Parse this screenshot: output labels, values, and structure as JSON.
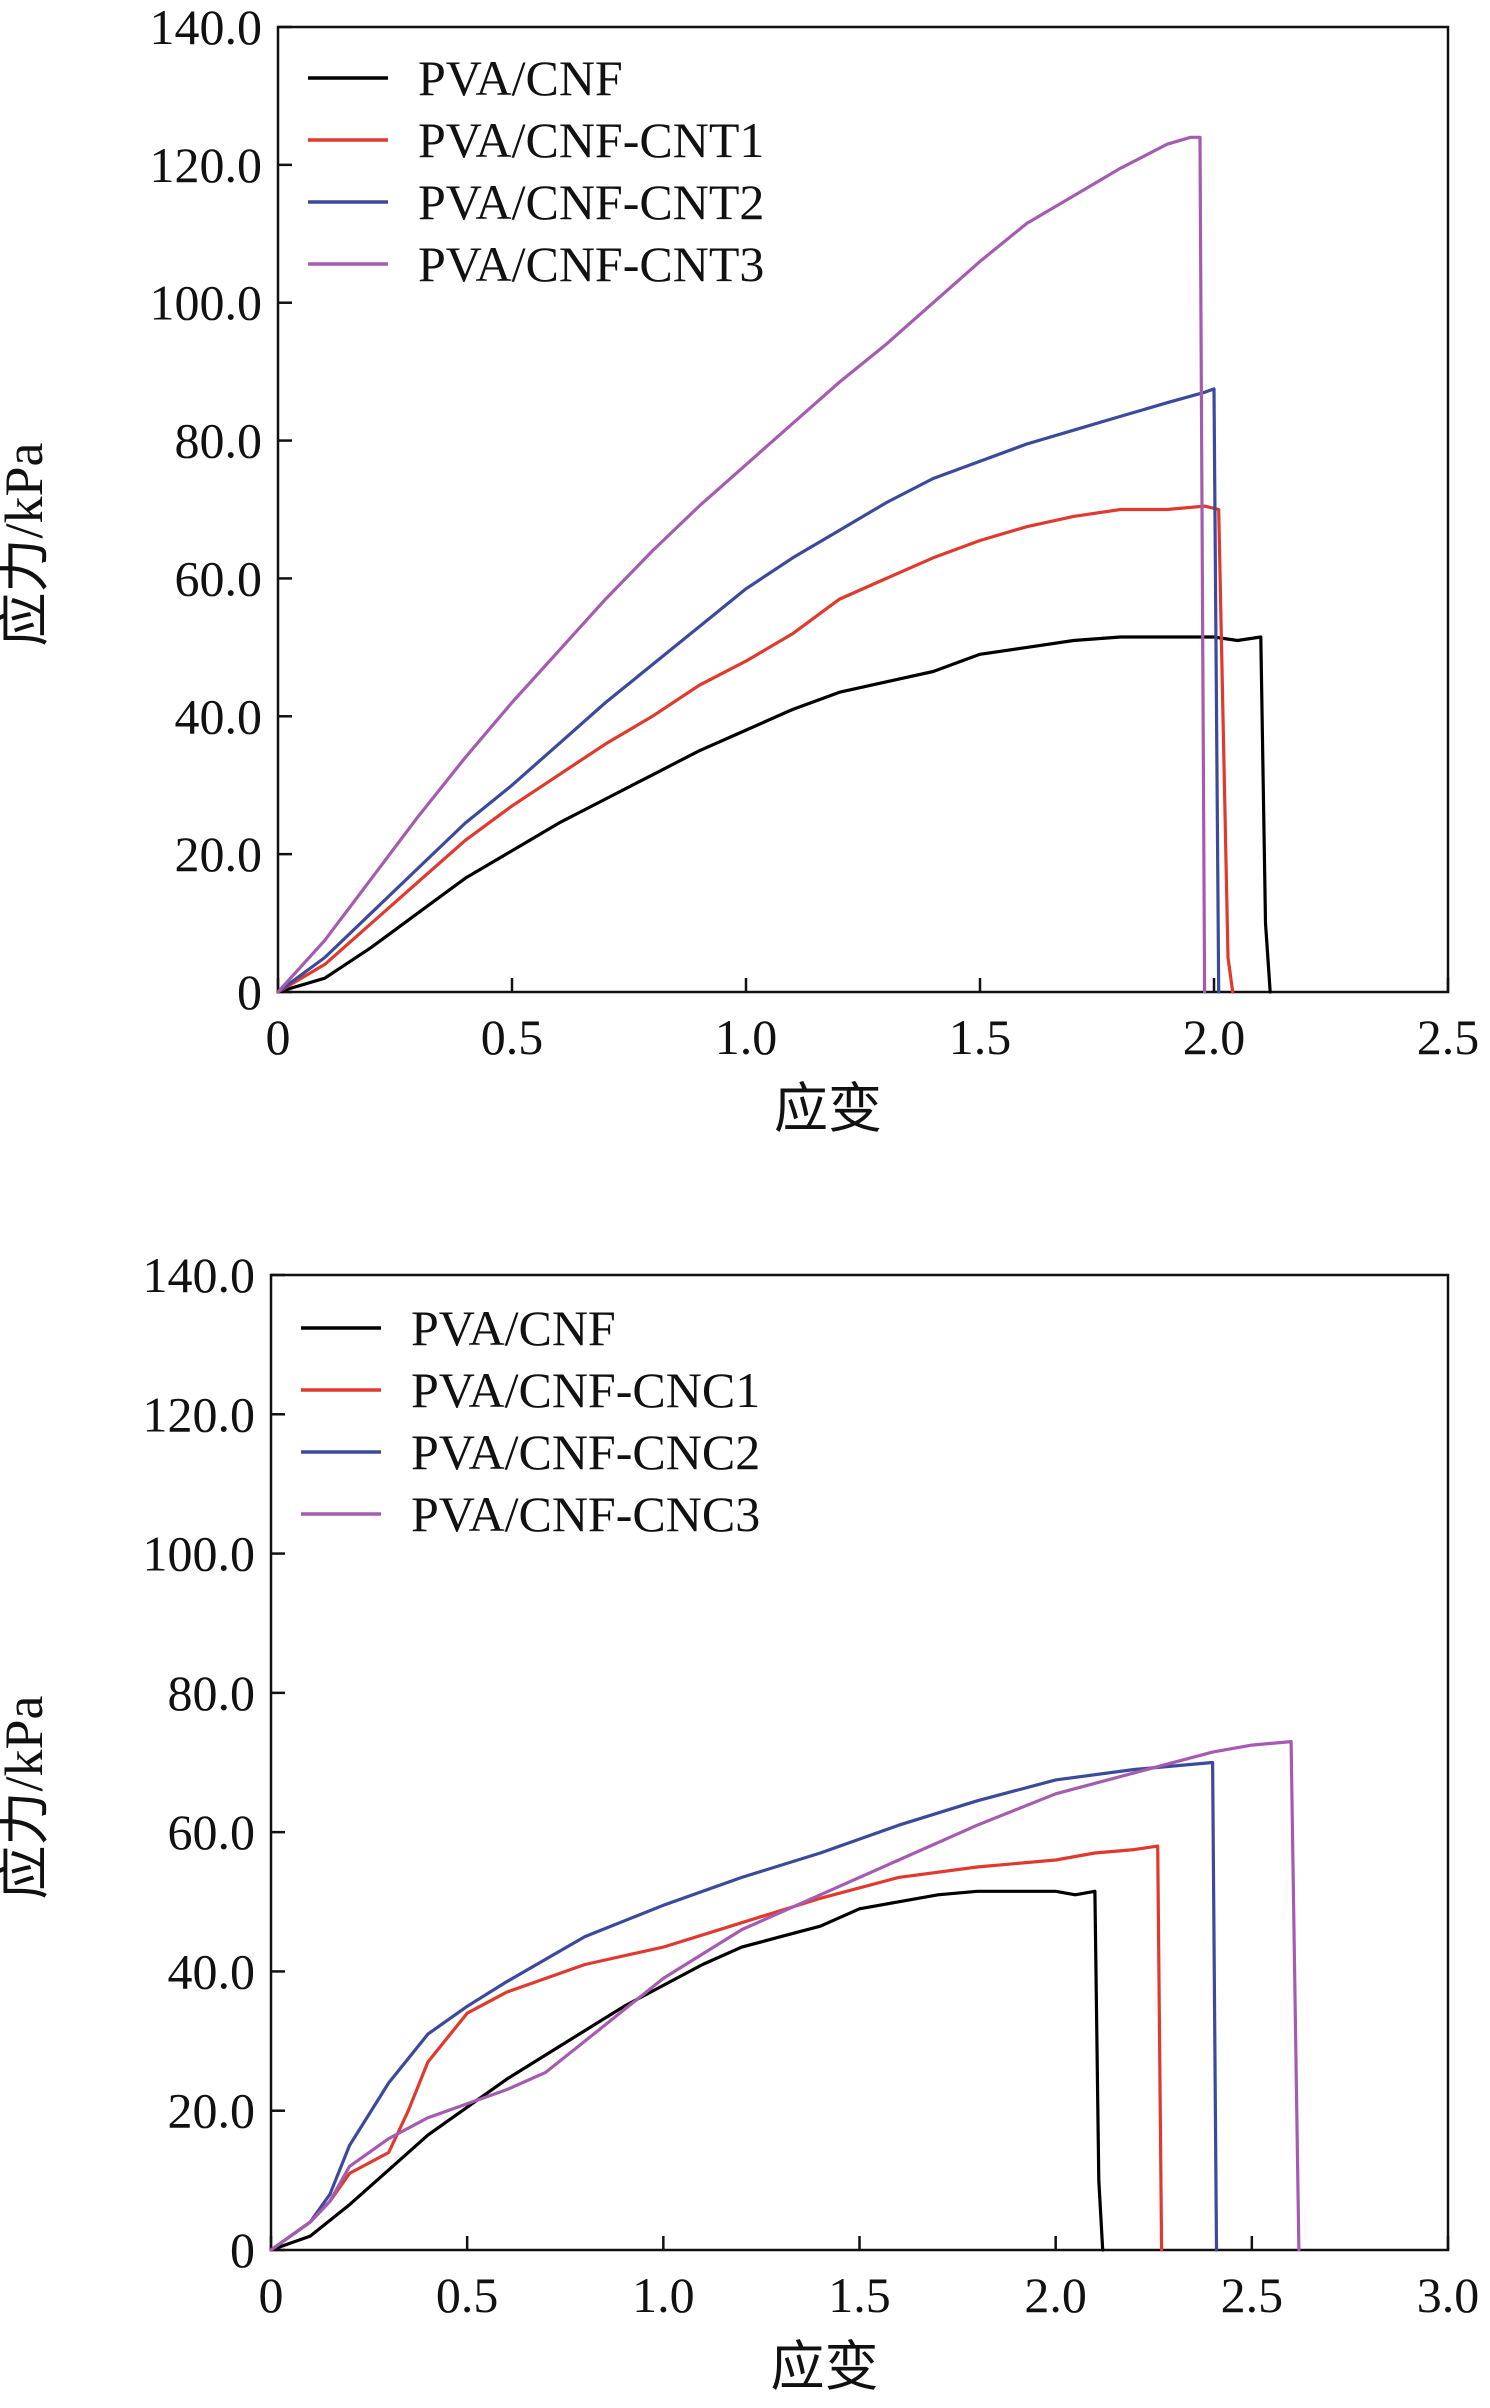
{
  "chart_data": [
    {
      "type": "line",
      "title": "",
      "xlabel": "应变",
      "ylabel": "应力/kPa",
      "xlim": [
        0,
        2.5
      ],
      "ylim": [
        0,
        140
      ],
      "xticks": [
        0,
        0.5,
        1.0,
        1.5,
        2.0,
        2.5
      ],
      "xtick_labels": [
        "0",
        "0.5",
        "1.0",
        "1.5",
        "2.0",
        "2.5"
      ],
      "yticks": [
        0,
        20,
        40,
        60,
        80,
        100,
        120,
        140
      ],
      "ytick_labels": [
        "0",
        "20.0",
        "40.0",
        "60.0",
        "80.0",
        "100.0",
        "120.0",
        "140.0"
      ],
      "legend_position": "top-left",
      "series": [
        {
          "name": "PVA/CNF",
          "color": "#000000",
          "x": [
            0,
            0.1,
            0.2,
            0.3,
            0.4,
            0.5,
            0.6,
            0.7,
            0.8,
            0.9,
            1.0,
            1.1,
            1.2,
            1.3,
            1.4,
            1.5,
            1.6,
            1.7,
            1.8,
            1.9,
            2.0,
            2.05,
            2.1,
            2.11,
            2.12
          ],
          "y": [
            0,
            2,
            6.5,
            11.5,
            16.5,
            20.5,
            24.5,
            28,
            31.5,
            35,
            38,
            41,
            43.5,
            45,
            46.5,
            49,
            50,
            51,
            51.5,
            51.5,
            51.5,
            51,
            51.5,
            10,
            0
          ]
        },
        {
          "name": "PVA/CNF-CNT1",
          "color": "#e03a2e",
          "x": [
            0,
            0.1,
            0.2,
            0.3,
            0.4,
            0.5,
            0.6,
            0.7,
            0.8,
            0.9,
            1.0,
            1.1,
            1.2,
            1.3,
            1.4,
            1.5,
            1.6,
            1.7,
            1.8,
            1.9,
            1.98,
            2.01,
            2.03,
            2.04
          ],
          "y": [
            0,
            4,
            10,
            16,
            22,
            27,
            31.5,
            36,
            40,
            44.5,
            48,
            52,
            57,
            60,
            63,
            65.5,
            67.5,
            69,
            70,
            70,
            70.5,
            70,
            5,
            0
          ]
        },
        {
          "name": "PVA/CNF-CNT2",
          "color": "#3b4a9c",
          "x": [
            0,
            0.1,
            0.2,
            0.3,
            0.4,
            0.5,
            0.6,
            0.7,
            0.8,
            0.9,
            1.0,
            1.1,
            1.2,
            1.3,
            1.4,
            1.5,
            1.6,
            1.7,
            1.8,
            1.9,
            1.98,
            2.0,
            2.01
          ],
          "y": [
            0,
            5,
            11.5,
            18,
            24.5,
            30,
            36,
            42,
            47.5,
            53,
            58.5,
            63,
            67,
            71,
            74.5,
            77,
            79.5,
            81.5,
            83.5,
            85.5,
            87,
            87.5,
            0
          ]
        },
        {
          "name": "PVA/CNF-CNT3",
          "color": "#a55cb0",
          "x": [
            0,
            0.1,
            0.2,
            0.3,
            0.4,
            0.5,
            0.6,
            0.7,
            0.8,
            0.9,
            1.0,
            1.1,
            1.2,
            1.3,
            1.4,
            1.5,
            1.6,
            1.7,
            1.8,
            1.9,
            1.95,
            1.97,
            1.98
          ],
          "y": [
            0,
            7.5,
            16.5,
            25.5,
            34,
            42,
            49.5,
            57,
            64,
            70.5,
            76.5,
            82.5,
            88.5,
            94,
            100,
            106,
            111.5,
            115.5,
            119.5,
            123,
            124,
            124,
            0
          ]
        }
      ]
    },
    {
      "type": "line",
      "title": "",
      "xlabel": "应变",
      "ylabel": "应力/kPa",
      "xlim": [
        0,
        3.0
      ],
      "ylim": [
        0,
        140
      ],
      "xticks": [
        0,
        0.5,
        1.0,
        1.5,
        2.0,
        2.5,
        3.0
      ],
      "xtick_labels": [
        "0",
        "0.5",
        "1.0",
        "1.5",
        "2.0",
        "2.5",
        "3.0"
      ],
      "yticks": [
        0,
        20,
        40,
        60,
        80,
        100,
        120,
        140
      ],
      "ytick_labels": [
        "0",
        "20.0",
        "40.0",
        "60.0",
        "80.0",
        "100.0",
        "120.0",
        "140.0"
      ],
      "legend_position": "top-left",
      "series": [
        {
          "name": "PVA/CNF",
          "color": "#000000",
          "x": [
            0,
            0.1,
            0.2,
            0.3,
            0.4,
            0.5,
            0.6,
            0.7,
            0.8,
            0.9,
            1.0,
            1.1,
            1.2,
            1.3,
            1.4,
            1.5,
            1.6,
            1.7,
            1.8,
            1.9,
            2.0,
            2.05,
            2.1,
            2.11,
            2.12
          ],
          "y": [
            0,
            2,
            6.5,
            11.5,
            16.5,
            20.5,
            24.5,
            28,
            31.5,
            35,
            38,
            41,
            43.5,
            45,
            46.5,
            49,
            50,
            51,
            51.5,
            51.5,
            51.5,
            51,
            51.5,
            10,
            0
          ]
        },
        {
          "name": "PVA/CNF-CNC1",
          "color": "#e03a2e",
          "x": [
            0,
            0.1,
            0.15,
            0.2,
            0.3,
            0.35,
            0.4,
            0.5,
            0.6,
            0.8,
            1.0,
            1.2,
            1.4,
            1.6,
            1.8,
            2.0,
            2.1,
            2.2,
            2.26,
            2.27
          ],
          "y": [
            0,
            4,
            7,
            11,
            14,
            20,
            27,
            34,
            37,
            41,
            43.5,
            47,
            50.5,
            53.5,
            55,
            56,
            57,
            57.5,
            58,
            0
          ]
        },
        {
          "name": "PVA/CNF-CNC2",
          "color": "#3b4a9c",
          "x": [
            0,
            0.1,
            0.15,
            0.2,
            0.3,
            0.4,
            0.5,
            0.6,
            0.8,
            1.0,
            1.2,
            1.4,
            1.6,
            1.8,
            2.0,
            2.2,
            2.3,
            2.4,
            2.41
          ],
          "y": [
            0,
            4,
            8,
            15,
            24,
            31,
            35,
            38.5,
            45,
            49.5,
            53.5,
            57,
            61,
            64.5,
            67.5,
            69,
            69.5,
            70,
            0
          ]
        },
        {
          "name": "PVA/CNF-CNC3",
          "color": "#a55cb0",
          "x": [
            0,
            0.1,
            0.15,
            0.2,
            0.3,
            0.4,
            0.5,
            0.6,
            0.7,
            0.8,
            1.0,
            1.2,
            1.4,
            1.6,
            1.8,
            2.0,
            2.2,
            2.4,
            2.5,
            2.6,
            2.62
          ],
          "y": [
            0,
            4,
            7,
            12,
            16,
            19,
            21,
            23,
            25.5,
            30,
            39,
            46,
            51,
            56,
            61,
            65.5,
            68.5,
            71.5,
            72.5,
            73,
            0
          ]
        }
      ]
    }
  ]
}
